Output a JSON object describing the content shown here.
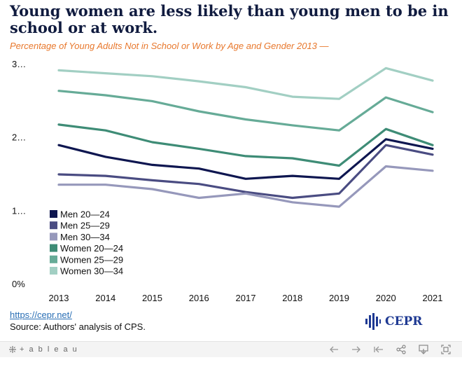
{
  "title": "Young women are less likely than young men to be in school or at work.",
  "subtitle": "Percentage of Young Adults Not in School or Work by Age and Gender 2013 —",
  "source": {
    "link": "https://cepr.net/",
    "text": "Source: Authors' analysis of CPS."
  },
  "logo_text": "CEPR",
  "toolbar": {
    "brand": "+ a b l e a u"
  },
  "colors": {
    "title": "#101b3f",
    "subtitle": "#e8782d",
    "link": "#2a6fb5"
  },
  "chart_data": {
    "type": "line",
    "x": [
      "2013",
      "2014",
      "2015",
      "2016",
      "2017",
      "2018",
      "2019",
      "2020",
      "2021"
    ],
    "y_ticks": [
      {
        "value": 0,
        "label": "0%"
      },
      {
        "value": 1,
        "label": "1…"
      },
      {
        "value": 2,
        "label": "2…"
      },
      {
        "value": 3,
        "label": "3…"
      }
    ],
    "ylim": [
      0,
      3
    ],
    "grid": false,
    "legend_position": "bottom-left",
    "series": [
      {
        "name": "Men 20—24",
        "color": "#0e1650",
        "values": [
          1.89,
          1.73,
          1.62,
          1.57,
          1.43,
          1.47,
          1.43,
          1.97,
          1.84
        ]
      },
      {
        "name": "Men 25—29",
        "color": "#4a4c82",
        "values": [
          1.49,
          1.47,
          1.41,
          1.36,
          1.25,
          1.17,
          1.23,
          1.89,
          1.76
        ]
      },
      {
        "name": "Men 30—34",
        "color": "#9698bb",
        "values": [
          1.35,
          1.35,
          1.29,
          1.17,
          1.23,
          1.11,
          1.05,
          1.6,
          1.54
        ]
      },
      {
        "name": "Women 20—24",
        "color": "#3e8c76",
        "values": [
          2.17,
          2.09,
          1.93,
          1.84,
          1.74,
          1.71,
          1.61,
          2.11,
          1.89
        ]
      },
      {
        "name": "Women 25—29",
        "color": "#66ab97",
        "values": [
          2.63,
          2.57,
          2.49,
          2.35,
          2.24,
          2.16,
          2.09,
          2.54,
          2.34
        ]
      },
      {
        "name": "Women 30—34",
        "color": "#a2cfc3",
        "values": [
          2.91,
          2.87,
          2.83,
          2.76,
          2.68,
          2.55,
          2.52,
          2.94,
          2.77
        ]
      }
    ]
  }
}
